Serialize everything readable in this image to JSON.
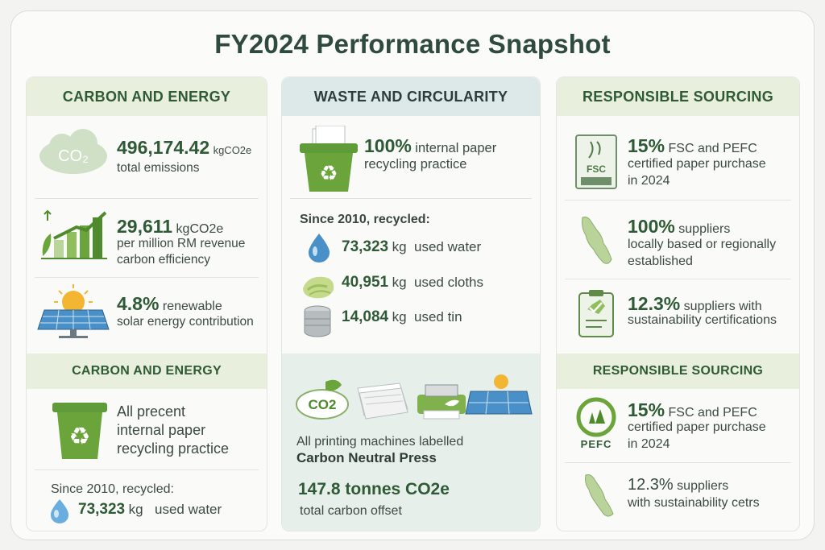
{
  "title": "FY2024 Performance Snapshot",
  "col1": {
    "header": "CARBON AND ENERGY",
    "item1": {
      "value": "496,174.42",
      "unit": "kgCO2e",
      "label": "total emissions"
    },
    "item2": {
      "value": "29,611",
      "unit": "kgCO2e",
      "line1": "per million RM revenue",
      "line2": "carbon efficiency"
    },
    "item3": {
      "value": "4.8%",
      "label": "renewable",
      "line2": "solar energy contribution"
    },
    "header2": "CARBON AND ENERGY",
    "item4": {
      "line1": "All precent",
      "line2": "internal paper",
      "line3": "recycling practice"
    },
    "since": "Since 2010, recycled:",
    "water": {
      "value": "73,323",
      "unit": "kg",
      "label": "used water"
    }
  },
  "col2": {
    "header": "WASTE AND CIRCULARITY",
    "item1": {
      "value": "100%",
      "line1": "internal paper",
      "line2": "recycling practice"
    },
    "since": "Since 2010, recycled:",
    "recycled": [
      {
        "value": "73,323",
        "unit": "kg",
        "label": "used water"
      },
      {
        "value": "40,951",
        "unit": "kg",
        "label": "used cloths"
      },
      {
        "value": "14,084",
        "unit": "kg",
        "label": "used tin"
      }
    ],
    "co2_icon": "CO2",
    "press_line1": "All printing machines labelled",
    "press_line2": "Carbon Neutral Press",
    "offset_value": "147.8 tonnes CO2e",
    "offset_label": "total carbon offset"
  },
  "col3": {
    "header": "RESPONSIBLE SOURCING",
    "item1": {
      "value": "15%",
      "label": "FSC and PEFC",
      "line2": "certified paper purchase",
      "line3": "in 2024",
      "logo": "FSC"
    },
    "item2": {
      "value": "100%",
      "label": "suppliers",
      "line2": "locally based or regionally",
      "line3": "established"
    },
    "item3": {
      "value": "12.3%",
      "label": "suppliers with",
      "line2": "sustainability certifications"
    },
    "header2": "RESPONSIBLE SOURCING",
    "item4": {
      "value": "15%",
      "label": "FSC and PEFC",
      "line2": "certified paper purchase",
      "line3": "in 2024",
      "logo": "PEFC"
    },
    "item5": {
      "value": "12.3%",
      "label": "suppliers",
      "line2": "with sustainability cetrs"
    }
  },
  "colors": {
    "green": "#2e5a36",
    "accent": "#6aa43a",
    "blue": "#4a90c8"
  }
}
